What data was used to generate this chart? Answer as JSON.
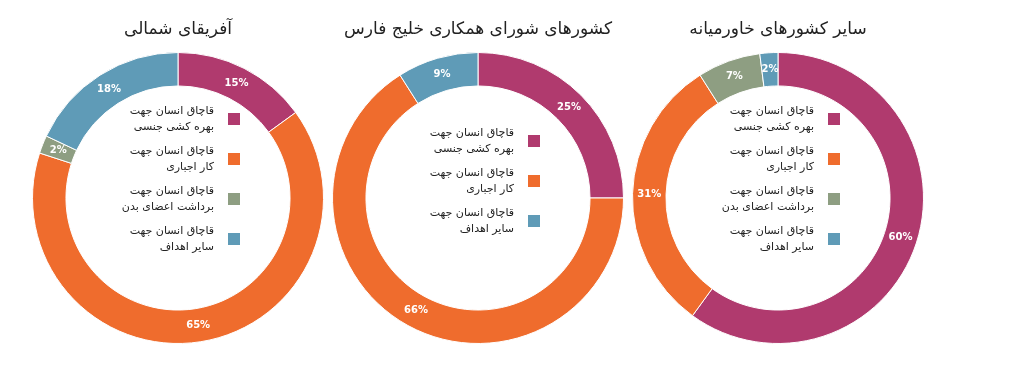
{
  "chart_data": [
    {
      "type": "donut",
      "title": "آفریقای شمالی",
      "categories": [
        "قاچاق انسان جهت بهره کشی جنسی",
        "قاچاق انسان جهت کار اجباری",
        "قاچاق انسان جهت برداشت اعضای بدن",
        "قاچاق انسان جهت سایر اهداف"
      ],
      "values": [
        15,
        65,
        2,
        18
      ],
      "value_labels": [
        "15%",
        "65%",
        "2%",
        "18%"
      ],
      "colors": [
        "#b03a6e",
        "#ef6c2d",
        "#8e9e82",
        "#5f9bb7"
      ],
      "legend": "center"
    },
    {
      "type": "donut",
      "title": "کشورهای شورای همکاری خلیج فارس",
      "categories": [
        "قاچاق انسان جهت بهره کشی جنسی",
        "قاچاق انسان جهت کار اجباری",
        "قاچاق انسان جهت سایر اهداف"
      ],
      "values": [
        25,
        66,
        9
      ],
      "value_labels": [
        "25%",
        "66%",
        "9%"
      ],
      "colors": [
        "#b03a6e",
        "#ef6c2d",
        "#5f9bb7"
      ],
      "legend": "center"
    },
    {
      "type": "donut",
      "title": "سایر کشورهای خاورمیانه",
      "categories": [
        "قاچاق انسان جهت بهره کشی جنسی",
        "قاچاق انسان جهت کار اجباری",
        "قاچاق انسان جهت برداشت اعضای بدن",
        "قاچاق انسان جهت سایر اهداف"
      ],
      "values": [
        60,
        31,
        7,
        2
      ],
      "value_labels": [
        "60%",
        "31%",
        "7%",
        "2%"
      ],
      "colors": [
        "#b03a6e",
        "#ef6c2d",
        "#8e9e82",
        "#5f9bb7"
      ],
      "legend": "center"
    }
  ]
}
